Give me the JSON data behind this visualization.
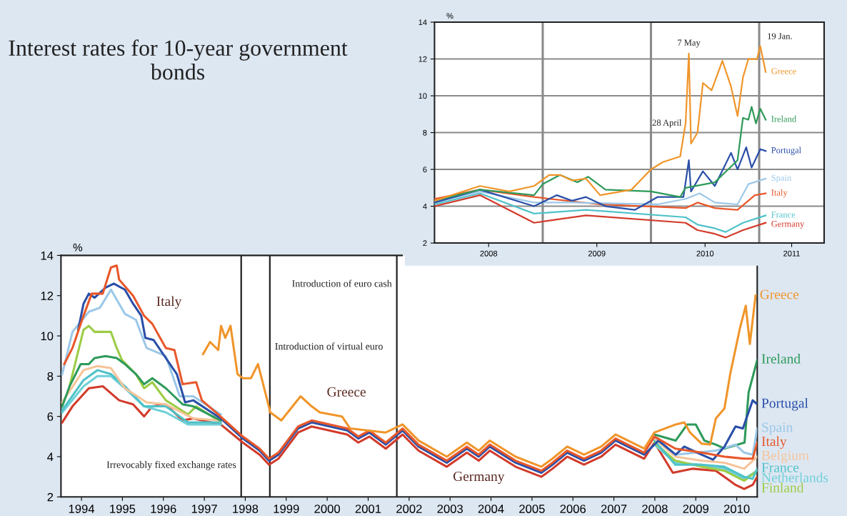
{
  "chart_data": [
    {
      "type": "line",
      "title": "Interest rates for 10-year government bonds",
      "ylabel": "%",
      "xlim": [
        1994,
        2011
      ],
      "ylim": [
        2,
        14
      ],
      "xticks": [
        {
          "value": 1994.5,
          "label": "1994"
        },
        {
          "value": 1995.5,
          "label": "1995"
        },
        {
          "value": 1996.5,
          "label": "1996"
        },
        {
          "value": 1997.5,
          "label": "1997"
        },
        {
          "value": 1998.5,
          "label": "1998"
        },
        {
          "value": 1999.5,
          "label": "1999"
        },
        {
          "value": 2000.5,
          "label": "2000"
        },
        {
          "value": 2001.5,
          "label": "2001"
        },
        {
          "value": 2002.5,
          "label": "2002"
        },
        {
          "value": 2003.5,
          "label": "2003"
        },
        {
          "value": 2004.5,
          "label": "2004"
        },
        {
          "value": 2005.5,
          "label": "2005"
        },
        {
          "value": 2006.5,
          "label": "2006"
        },
        {
          "value": 2007.5,
          "label": "2007"
        },
        {
          "value": 2008.5,
          "label": "2008"
        },
        {
          "value": 2009.5,
          "label": "2009"
        },
        {
          "value": 2010.5,
          "label": "2010"
        }
      ],
      "yticks": [
        2,
        4,
        6,
        8,
        10,
        12,
        14
      ],
      "grid": false,
      "legend": false,
      "series": [
        {
          "color": "#d23a2a",
          "x": [
            1994.03,
            1994.28,
            1994.68,
            1995.02,
            1995.42,
            1995.76,
            1996.03,
            1996.23,
            1996.56,
            1996.97,
            1997.23,
            1997.9,
            1998.44,
            1998.85,
            1999.08,
            1999.31,
            1999.79,
            2000.12,
            2000.99,
            2001.26,
            2001.53,
            2001.93,
            2002.34,
            2002.73,
            2003.42,
            2003.91,
            2004.2,
            2004.47,
            2005.1,
            2005.73,
            2006.0,
            2006.36,
            2006.77,
            2007.19,
            2007.54,
            2008.24,
            2008.49,
            2008.94,
            2009.43,
            2009.99,
            2010.47,
            2010.68,
            2010.89,
            2011.0
          ],
          "values": [
            5.7,
            6.5,
            7.4,
            7.5,
            6.8,
            6.6,
            6.0,
            6.5,
            6.6,
            5.8,
            5.9,
            5.6,
            4.7,
            4.1,
            3.6,
            3.9,
            5.2,
            5.5,
            5.1,
            4.7,
            5.0,
            4.4,
            5.1,
            4.3,
            3.5,
            4.2,
            3.8,
            4.3,
            3.5,
            3.0,
            3.4,
            4.0,
            3.6,
            4.0,
            4.6,
            3.9,
            4.7,
            3.2,
            3.4,
            3.3,
            2.6,
            2.4,
            2.6,
            3.0
          ]
        },
        {
          "name": "Netherlands",
          "color": "#6fd0d8",
          "x": [
            1994.03,
            1994.55,
            1994.89,
            1995.22,
            1995.56,
            1996.03,
            1996.56,
            1997.1,
            1997.9,
            2003.0,
            2008.49,
            2009.0,
            2009.64,
            2010.2,
            2010.68,
            2011.0
          ],
          "values": [
            6.2,
            7.5,
            8.0,
            8.0,
            7.4,
            6.5,
            6.2,
            5.6,
            5.6,
            null,
            4.6,
            3.7,
            3.6,
            3.4,
            2.9,
            3.3
          ]
        },
        {
          "name": "Finland",
          "color": "#9ccc45",
          "x": [
            1994.21,
            1994.55,
            1994.68,
            1994.82,
            1995.22,
            1995.36,
            1995.49,
            1995.83,
            1996.03,
            1996.23,
            1996.56,
            1997.1,
            1997.3,
            1997.84,
            2003.0,
            2008.49,
            2009.0,
            2009.64,
            2010.2,
            2010.68,
            2011.0
          ],
          "values": [
            7.5,
            10.3,
            10.5,
            10.2,
            10.2,
            9.4,
            8.8,
            8.1,
            7.4,
            7.7,
            6.8,
            6.1,
            6.5,
            5.8,
            null,
            4.7,
            3.8,
            3.5,
            3.3,
            2.8,
            3.3
          ]
        },
        {
          "name": "France",
          "color": "#4fc2c8",
          "x": [
            1994.03,
            1994.55,
            1994.89,
            1995.22,
            1995.56,
            1996.03,
            1996.56,
            1997.1,
            1997.9,
            2003.0,
            2008.49,
            2009.0,
            2009.64,
            2010.2,
            2010.68,
            2010.89,
            2011.0
          ],
          "values": [
            6.3,
            7.8,
            8.3,
            8.1,
            7.5,
            6.5,
            6.5,
            5.7,
            5.7,
            null,
            4.8,
            3.6,
            3.6,
            3.5,
            3.0,
            2.9,
            3.4
          ]
        },
        {
          "name": "Belgium",
          "color": "#f5c49a",
          "x": [
            1994.03,
            1994.55,
            1994.89,
            1995.22,
            1995.56,
            1996.09,
            1996.56,
            1997.23,
            1997.9,
            2003.0,
            2008.49,
            2009.0,
            2009.64,
            2010.2,
            2010.68,
            2011.0
          ],
          "values": [
            6.7,
            8.3,
            8.5,
            8.4,
            7.4,
            6.7,
            6.6,
            5.9,
            5.8,
            null,
            4.9,
            4.0,
            3.8,
            3.7,
            3.4,
            4.0
          ]
        },
        {
          "name": "Ireland",
          "color": "#2e9a5a",
          "x": [
            1994.03,
            1994.21,
            1994.48,
            1994.68,
            1994.82,
            1995.09,
            1995.36,
            1995.56,
            1995.83,
            1996.03,
            1996.23,
            1996.56,
            1996.97,
            1997.23,
            1997.9,
            2003.0,
            2008.49,
            2009.01,
            2009.29,
            2009.5,
            2009.71,
            2009.99,
            2010.2,
            2010.69,
            2010.79,
            2011.0
          ],
          "values": [
            6.5,
            7.5,
            8.6,
            8.6,
            8.9,
            9.0,
            8.9,
            8.6,
            8.1,
            7.6,
            7.9,
            7.4,
            6.6,
            6.5,
            5.8,
            null,
            5.1,
            4.8,
            5.6,
            5.6,
            4.8,
            4.6,
            4.4,
            4.7,
            7.2,
            8.8
          ]
        },
        {
          "name": "Spain",
          "color": "#9cc8e8",
          "x": [
            1994.03,
            1994.28,
            1994.68,
            1994.95,
            1995.22,
            1995.56,
            1995.83,
            1996.09,
            1996.56,
            1996.9,
            1997.23,
            1997.9,
            2003.0,
            2008.49,
            2009.0,
            2009.99,
            2010.47,
            2010.68,
            2010.89,
            2011.0
          ],
          "values": [
            8.1,
            10.2,
            11.2,
            11.4,
            12.3,
            11.1,
            10.8,
            9.4,
            9.0,
            7.0,
            7.0,
            6.1,
            null,
            5.0,
            4.1,
            4.3,
            4.6,
            4.2,
            4.1,
            5.4
          ]
        },
        {
          "name": "Portugal",
          "color": "#2a4fa8",
          "x": [
            1994.42,
            1994.55,
            1994.68,
            1994.82,
            1995.09,
            1995.29,
            1995.56,
            1995.76,
            1995.96,
            1996.06,
            1996.26,
            1996.56,
            1996.83,
            1997.03,
            1997.23,
            1997.9,
            1998.44,
            1998.85,
            1999.08,
            1999.31,
            1999.79,
            2000.12,
            2000.99,
            2001.26,
            2001.53,
            2001.93,
            2002.34,
            2002.73,
            2003.42,
            2003.91,
            2004.2,
            2004.47,
            2005.1,
            2005.73,
            2006.0,
            2006.36,
            2006.77,
            2007.19,
            2007.54,
            2008.24,
            2008.59,
            2009.01,
            2009.22,
            2009.64,
            2009.92,
            2010.2,
            2010.47,
            2010.65,
            2010.89,
            2011.0
          ],
          "values": [
            10.3,
            11.6,
            12.1,
            11.9,
            12.4,
            12.6,
            12.3,
            11.6,
            11.0,
            9.9,
            9.8,
            8.9,
            8.1,
            6.7,
            6.8,
            5.9,
            4.9,
            4.3,
            3.8,
            4.1,
            5.4,
            5.7,
            5.3,
            4.9,
            5.2,
            4.6,
            5.3,
            4.5,
            3.7,
            4.4,
            4.0,
            4.5,
            3.7,
            3.2,
            3.6,
            4.2,
            3.8,
            4.2,
            4.8,
            4.1,
            4.8,
            4.1,
            4.5,
            4.1,
            3.85,
            4.5,
            5.5,
            5.4,
            6.8,
            6.6
          ]
        },
        {
          "name": "Italy",
          "color": "#e8572a",
          "x": [
            1994.08,
            1994.28,
            1994.55,
            1994.75,
            1995.02,
            1995.22,
            1995.36,
            1995.42,
            1995.76,
            1996.03,
            1996.23,
            1996.56,
            1996.77,
            1996.97,
            1997.3,
            1997.44,
            1997.84,
            1998.44,
            1998.85,
            1999.08,
            1999.31,
            1999.79,
            2000.12,
            2000.99,
            2001.26,
            2001.53,
            2001.93,
            2002.34,
            2002.73,
            2003.42,
            2003.91,
            2004.2,
            2004.47,
            2005.1,
            2005.73,
            2006.0,
            2006.36,
            2006.77,
            2007.19,
            2007.54,
            2008.24,
            2008.49,
            2009.0,
            2009.64,
            2010.2,
            2010.68,
            2010.89,
            2011.0
          ],
          "values": [
            8.6,
            9.4,
            11.0,
            12.1,
            12.1,
            13.4,
            13.5,
            12.8,
            12.0,
            11.0,
            10.6,
            9.4,
            9.3,
            7.6,
            7.7,
            6.8,
            6.1,
            5.0,
            4.4,
            3.9,
            4.2,
            5.5,
            5.8,
            5.4,
            5.0,
            5.3,
            4.7,
            5.4,
            4.6,
            3.8,
            4.5,
            4.1,
            4.6,
            3.8,
            3.3,
            3.7,
            4.3,
            3.9,
            4.3,
            4.9,
            4.2,
            5.0,
            4.4,
            4.2,
            4.0,
            3.9,
            3.9,
            4.7
          ]
        },
        {
          "name": "Greece",
          "color": "#f0952a",
          "x": [
            1997.47,
            1997.64,
            1997.84,
            1997.91,
            1998.01,
            1998.14,
            1998.31,
            1998.44,
            1998.64,
            1998.81,
            1999.05,
            1999.11,
            1999.38,
            1999.85,
            2000.12,
            2000.32,
            2000.86,
            2001.06,
            2001.93,
            2002.34,
            2002.73,
            2003.42,
            2003.91,
            2004.2,
            2004.47,
            2005.1,
            2005.73,
            2006.0,
            2006.36,
            2006.77,
            2007.19,
            2007.54,
            2008.24,
            2008.49,
            2009.01,
            2009.22,
            2009.36,
            2009.64,
            2009.85,
            2009.99,
            2010.2,
            2010.34,
            2010.58,
            2010.72,
            2010.82,
            2010.96
          ],
          "values": [
            9.1,
            9.7,
            9.3,
            10.5,
            9.9,
            10.5,
            8.1,
            7.9,
            7.9,
            8.6,
            6.7,
            6.2,
            5.8,
            7.0,
            6.5,
            6.2,
            6.0,
            5.4,
            5.2,
            5.6,
            4.8,
            4.0,
            4.7,
            4.3,
            4.8,
            4.0,
            3.5,
            3.9,
            4.5,
            4.1,
            4.5,
            5.1,
            4.4,
            5.2,
            5.6,
            5.7,
            5.2,
            4.65,
            4.6,
            5.9,
            6.4,
            8.1,
            10.4,
            11.5,
            9.6,
            12.0
          ]
        }
      ],
      "ref_lines": [
        {
          "axis": "x",
          "value": 1998.4,
          "label": "Irrevocably fixed exchange rates",
          "color": "#222222"
        },
        {
          "axis": "x",
          "value": 1999.1,
          "label": "Introduction of virtual euro",
          "color": "#222222"
        },
        {
          "axis": "x",
          "value": 2002.2,
          "label": "Introduction of euro cash",
          "color": "#222222"
        }
      ],
      "annotations": [
        "Italy",
        "Greece",
        "Germany"
      ]
    },
    {
      "type": "line",
      "ylabel": "%",
      "xlim": [
        2008,
        2011.6
      ],
      "ylim": [
        2,
        14
      ],
      "xticks": [
        {
          "value": 2008.5,
          "label": "2008"
        },
        {
          "value": 2009.5,
          "label": "2009"
        },
        {
          "value": 2010.5,
          "label": "2010"
        },
        {
          "value": 2011.3,
          "label": "2011"
        }
      ],
      "yticks": [
        2,
        4,
        6,
        8,
        10,
        12,
        14
      ],
      "grid": "y",
      "legend": false,
      "series": [
        {
          "name": "Germany",
          "color": "#d23a2a",
          "x": [
            2008.0,
            2008.42,
            2008.92,
            2009.4,
            2010.32,
            2010.43,
            2010.59,
            2010.69,
            2010.85,
            2011.06
          ],
          "values": [
            4.0,
            4.6,
            3.1,
            3.5,
            3.1,
            2.7,
            2.5,
            2.3,
            2.7,
            3.1
          ]
        },
        {
          "name": "France",
          "color": "#4fc2c8",
          "x": [
            2008.0,
            2008.42,
            2008.92,
            2009.4,
            2010.32,
            2010.43,
            2010.59,
            2010.69,
            2010.85,
            2011.06
          ],
          "values": [
            4.1,
            4.7,
            3.6,
            3.8,
            3.4,
            3.0,
            2.8,
            2.6,
            3.1,
            3.5
          ]
        },
        {
          "name": "Italy",
          "color": "#e8572a",
          "x": [
            2008.0,
            2008.42,
            2008.92,
            2009.53,
            2010.32,
            2010.43,
            2010.59,
            2010.8,
            2010.96,
            2011.06
          ],
          "values": [
            4.4,
            4.9,
            4.5,
            4.1,
            3.9,
            4.2,
            3.9,
            3.8,
            4.6,
            4.7
          ]
        },
        {
          "name": "Spain",
          "color": "#9cc8e8",
          "x": [
            2008.0,
            2008.42,
            2008.92,
            2009.27,
            2010.06,
            2010.32,
            2010.45,
            2010.59,
            2010.8,
            2010.9,
            2011.06
          ],
          "values": [
            4.2,
            4.8,
            4.2,
            4.2,
            4.1,
            4.4,
            4.7,
            4.2,
            4.1,
            5.2,
            5.5
          ]
        },
        {
          "name": "Portugal",
          "color": "#2a4fa8",
          "x": [
            2008.0,
            2008.42,
            2008.92,
            2009.13,
            2009.27,
            2009.4,
            2009.58,
            2009.85,
            2010.06,
            2010.3,
            2010.35,
            2010.37,
            2010.48,
            2010.59,
            2010.74,
            2010.8,
            2010.88,
            2010.93,
            2011.01,
            2011.06
          ],
          "values": [
            4.2,
            4.9,
            4.0,
            4.6,
            4.3,
            4.5,
            4.0,
            3.8,
            4.5,
            4.5,
            6.5,
            4.8,
            5.9,
            5.1,
            6.9,
            6.0,
            7.2,
            6.1,
            7.1,
            7.0
          ]
        },
        {
          "name": "Ireland",
          "color": "#2e9a5a",
          "x": [
            2008.0,
            2008.42,
            2008.92,
            2009.0,
            2009.16,
            2009.32,
            2009.42,
            2009.58,
            2010.0,
            2010.27,
            2010.32,
            2010.59,
            2010.8,
            2010.85,
            2010.9,
            2010.93,
            2010.97,
            2011.01,
            2011.06
          ],
          "values": [
            4.3,
            4.9,
            4.6,
            5.2,
            5.7,
            5.3,
            5.6,
            4.9,
            4.8,
            4.5,
            5.0,
            5.3,
            6.5,
            8.8,
            8.7,
            9.4,
            8.5,
            9.3,
            8.7
          ]
        },
        {
          "name": "Greece",
          "color": "#f0952a",
          "x": [
            2008.0,
            2008.42,
            2008.69,
            2008.92,
            2009.06,
            2009.16,
            2009.27,
            2009.4,
            2009.53,
            2009.82,
            2010.0,
            2010.11,
            2010.27,
            2010.32,
            2010.35,
            2010.37,
            2010.43,
            2010.48,
            2010.56,
            2010.66,
            2010.74,
            2010.8,
            2010.85,
            2010.9,
            2010.98,
            2011.01,
            2011.06
          ],
          "values": [
            4.3,
            5.1,
            4.8,
            5.1,
            5.7,
            5.7,
            5.4,
            5.5,
            4.6,
            4.9,
            6.0,
            6.4,
            6.7,
            8.5,
            12.3,
            7.4,
            8.0,
            10.7,
            10.3,
            11.9,
            10.5,
            8.9,
            11.0,
            12.0,
            12.0,
            12.7,
            11.3
          ]
        }
      ],
      "ref_lines": [
        {
          "axis": "x",
          "value": 2009,
          "color": "#8a8a8a"
        },
        {
          "axis": "x",
          "value": 2010,
          "color": "#8a8a8a"
        },
        {
          "axis": "x",
          "value": 2011,
          "color": "#8a8a8a"
        }
      ],
      "annotations": [
        {
          "text": "7 May",
          "x": 2010.35,
          "y": 12.3
        },
        {
          "text": "28 April",
          "x": 2010.32,
          "y": 8.5
        },
        {
          "text": "19 Jan.",
          "x": 2011.0,
          "y": 13.2
        }
      ]
    }
  ]
}
